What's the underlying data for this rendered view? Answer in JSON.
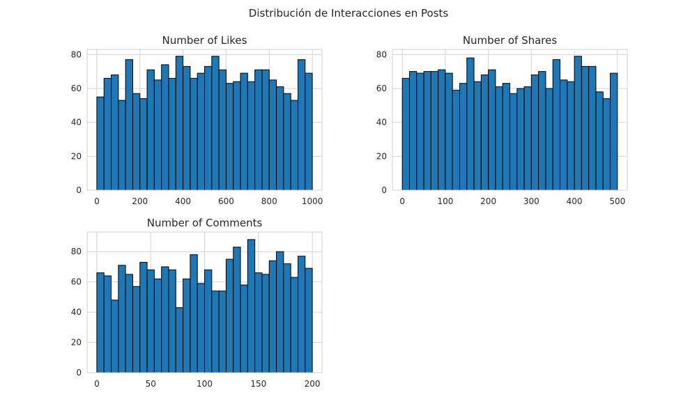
{
  "title": "Distribución de Interacciones en Posts",
  "colors": {
    "bar_fill": "#1f77b4",
    "bar_edge": "#000000",
    "grid": "#cfd2d9",
    "background": "#ffffff"
  },
  "chart_data": [
    {
      "type": "bar",
      "title": "Number of Likes",
      "xlabel": "",
      "ylabel": "",
      "grid": true,
      "bin_range": [
        0,
        1000
      ],
      "xlim": [
        -45,
        1045
      ],
      "ylim": [
        0,
        83
      ],
      "xticks": [
        0,
        200,
        400,
        600,
        800,
        1000
      ],
      "yticks": [
        0,
        20,
        40,
        60,
        80
      ],
      "values": [
        55,
        66,
        68,
        53,
        77,
        57,
        54,
        71,
        65,
        74,
        66,
        79,
        73,
        66,
        69,
        73,
        79,
        71,
        63,
        64,
        69,
        64,
        71,
        71,
        65,
        61,
        57,
        53,
        77,
        69
      ]
    },
    {
      "type": "bar",
      "title": "Number of Shares",
      "xlabel": "",
      "ylabel": "",
      "grid": true,
      "bin_range": [
        0,
        500
      ],
      "xlim": [
        -23,
        523
      ],
      "ylim": [
        0,
        83
      ],
      "xticks": [
        0,
        100,
        200,
        300,
        400,
        500
      ],
      "yticks": [
        0,
        20,
        40,
        60,
        80
      ],
      "values": [
        66,
        70,
        69,
        70,
        70,
        71,
        69,
        59,
        63,
        78,
        64,
        68,
        71,
        61,
        63,
        57,
        60,
        61,
        68,
        70,
        60,
        77,
        65,
        64,
        79,
        73,
        73,
        58,
        54,
        69
      ]
    },
    {
      "type": "bar",
      "title": "Number of Comments",
      "xlabel": "",
      "ylabel": "",
      "grid": true,
      "bin_range": [
        0,
        200
      ],
      "xlim": [
        -9,
        209
      ],
      "ylim": [
        0,
        93
      ],
      "xticks": [
        0,
        50,
        100,
        150,
        200
      ],
      "yticks": [
        0,
        20,
        40,
        60,
        80
      ],
      "values": [
        66,
        64,
        48,
        71,
        65,
        57,
        73,
        68,
        62,
        70,
        68,
        43,
        62,
        78,
        59,
        68,
        54,
        54,
        75,
        83,
        58,
        88,
        66,
        65,
        74,
        80,
        72,
        63,
        77,
        69
      ]
    }
  ]
}
